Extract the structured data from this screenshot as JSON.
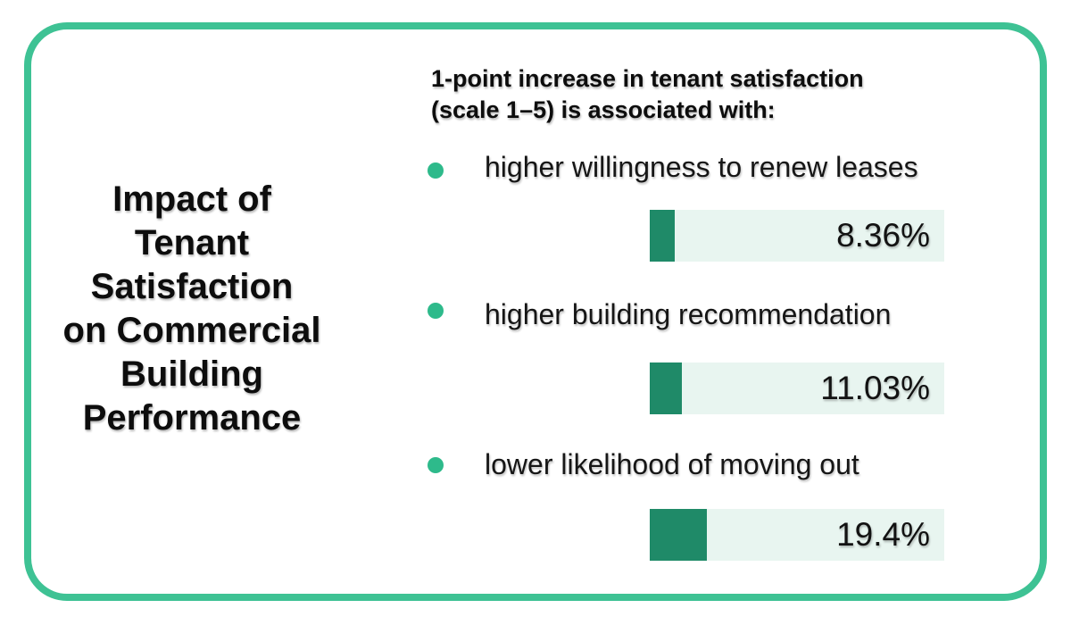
{
  "colors": {
    "card_border": "#3ec294",
    "bullet": "#2eba8b",
    "bar_fill": "#1f8a68",
    "bar_track": "#e8f5f0",
    "text": "#111111"
  },
  "title": "Impact of\nTenant\nSatisfaction\non Commercial\nBuilding\nPerformance",
  "chart_heading": "1-point increase in tenant satisfaction\n(scale 1–5) is associated with:",
  "chart_data": {
    "type": "bar",
    "orientation": "horizontal",
    "title": "Impact of Tenant Satisfaction on Commercial Building Performance",
    "subtitle": "1-point increase in tenant satisfaction (scale 1–5) is associated with:",
    "categories": [
      "higher willingness to renew leases",
      "higher building recommendation",
      "lower likelihood of moving out"
    ],
    "values": [
      8.36,
      11.03,
      19.4
    ],
    "value_labels": [
      "8.36%",
      "11.03%",
      "19.4%"
    ],
    "unit": "%",
    "xlim": [
      0,
      100
    ],
    "grid": false,
    "legend": false
  }
}
